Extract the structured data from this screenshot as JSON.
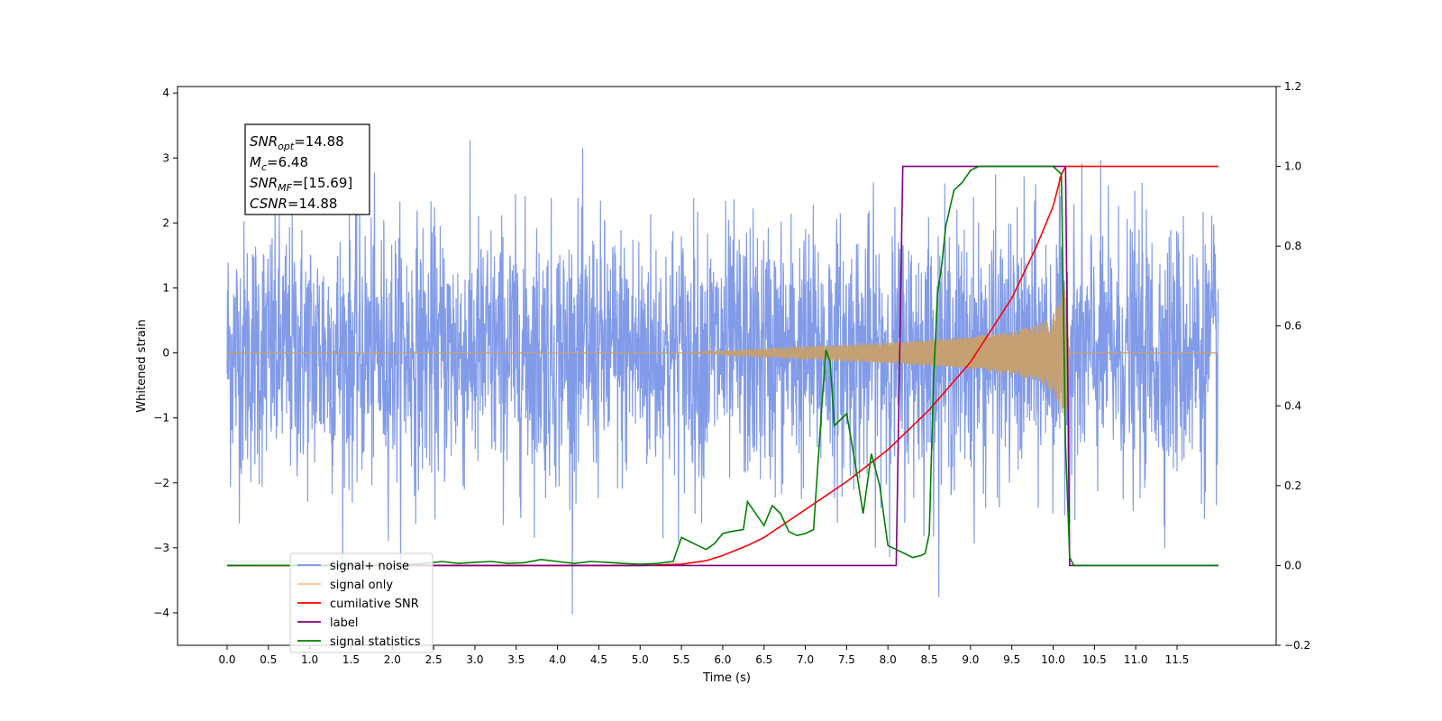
{
  "chart_data": {
    "type": "line",
    "xlabel": "Time (s)",
    "ylabel": "Whitened strain",
    "xlim": [
      -0.6,
      12.7
    ],
    "ylim": [
      -4.5,
      4.1
    ],
    "y2lim": [
      -0.2,
      1.2
    ],
    "x_ticks": [
      "0.0",
      "0.5",
      "1.0",
      "1.5",
      "2.0",
      "2.5",
      "3.0",
      "3.5",
      "4.0",
      "4.5",
      "5.0",
      "5.5",
      "6.0",
      "6.5",
      "7.0",
      "7.5",
      "8.0",
      "8.5",
      "9.0",
      "9.5",
      "10.0",
      "10.5",
      "11.0",
      "11.5"
    ],
    "y_ticks": [
      "4",
      "3",
      "2",
      "1",
      "0",
      "−1",
      "−2",
      "−3",
      "−4"
    ],
    "y2_ticks": [
      "1.2",
      "1.0",
      "0.8",
      "0.6",
      "0.4",
      "0.2",
      "0.0",
      "−0.2"
    ],
    "info_box": [
      {
        "main": "SNR",
        "sub": "opt",
        "value": "=14.88"
      },
      {
        "main": "M",
        "sub": "c",
        "value": "=6.48"
      },
      {
        "main": "SNR",
        "sub": "MF",
        "value": "=[15.69]"
      },
      {
        "main": "CSNR",
        "sub": "",
        "value": "=14.88"
      }
    ],
    "legend": {
      "placement": "lower-left",
      "entries": [
        {
          "label": "signal+ noise",
          "color": "#7b96e8"
        },
        {
          "label": "signal only",
          "color": "#ffc580"
        },
        {
          "label": "cumilative SNR",
          "color": "#ff0000"
        },
        {
          "label": "label",
          "color": "#800080"
        },
        {
          "label": "signal statistics",
          "color": "#008000"
        }
      ]
    },
    "series": [
      {
        "name": "signal+ noise",
        "axis": "left",
        "color": "#7b96e8",
        "x_range": [
          0.0,
          12.0
        ],
        "noise_std": 1.0,
        "min_value": -4.1,
        "max_value": 3.7
      },
      {
        "name": "signal only",
        "axis": "left",
        "color": "#c4a073",
        "envelope": {
          "x": [
            5.5,
            6.0,
            6.5,
            7.0,
            7.5,
            8.0,
            8.5,
            9.0,
            9.5,
            9.8,
            10.0,
            10.1,
            10.15,
            10.2
          ],
          "y": [
            0.0,
            0.03,
            0.07,
            0.1,
            0.13,
            0.16,
            0.2,
            0.25,
            0.33,
            0.43,
            0.6,
            0.9,
            1.1,
            0.0
          ]
        }
      },
      {
        "name": "cumilative SNR",
        "axis": "right",
        "color": "#ff0000",
        "x": [
          0,
          5.0,
          5.5,
          5.8,
          6.0,
          6.3,
          6.5,
          7.0,
          7.5,
          8.0,
          8.5,
          9.0,
          9.5,
          9.8,
          10.0,
          10.1,
          10.15,
          12.0
        ],
        "y": [
          0,
          0,
          0.003,
          0.012,
          0.025,
          0.05,
          0.07,
          0.14,
          0.21,
          0.29,
          0.39,
          0.51,
          0.67,
          0.8,
          0.9,
          0.98,
          1.0,
          1.0
        ]
      },
      {
        "name": "label",
        "axis": "right",
        "color": "#800080",
        "x": [
          0,
          8.1,
          8.18,
          10.15,
          10.2,
          12.0
        ],
        "y": [
          0,
          0,
          1,
          1,
          0,
          0
        ]
      },
      {
        "name": "signal statistics",
        "axis": "right",
        "color": "#008000",
        "x": [
          0,
          2.0,
          2.4,
          2.6,
          2.8,
          3.0,
          3.2,
          3.4,
          3.6,
          3.8,
          4.0,
          4.2,
          4.4,
          4.6,
          4.8,
          5.0,
          5.2,
          5.4,
          5.5,
          5.6,
          5.7,
          5.8,
          5.9,
          6.0,
          6.1,
          6.25,
          6.3,
          6.4,
          6.5,
          6.6,
          6.7,
          6.8,
          6.9,
          7.0,
          7.1,
          7.2,
          7.25,
          7.3,
          7.35,
          7.4,
          7.5,
          7.6,
          7.7,
          7.8,
          7.9,
          8.0,
          8.1,
          8.2,
          8.3,
          8.4,
          8.45,
          8.5,
          8.55,
          8.6,
          8.65,
          8.7,
          8.8,
          8.9,
          9.0,
          9.1,
          9.5,
          10.0,
          10.1,
          10.15,
          10.2,
          10.25,
          12.0
        ],
        "y": [
          0,
          0,
          0.005,
          0.01,
          0.005,
          0.008,
          0.01,
          0.005,
          0.007,
          0.015,
          0.01,
          0.005,
          0.01,
          0.008,
          0.005,
          0.003,
          0.005,
          0.01,
          0.07,
          0.06,
          0.05,
          0.04,
          0.055,
          0.08,
          0.085,
          0.09,
          0.16,
          0.13,
          0.1,
          0.15,
          0.13,
          0.085,
          0.075,
          0.08,
          0.09,
          0.4,
          0.54,
          0.51,
          0.35,
          0.36,
          0.38,
          0.26,
          0.13,
          0.28,
          0.2,
          0.05,
          0.04,
          0.03,
          0.02,
          0.025,
          0.03,
          0.08,
          0.45,
          0.68,
          0.75,
          0.85,
          0.94,
          0.96,
          0.99,
          1.0,
          1.0,
          1.0,
          0.98,
          0.3,
          0.02,
          0.0,
          0.0
        ]
      }
    ]
  }
}
